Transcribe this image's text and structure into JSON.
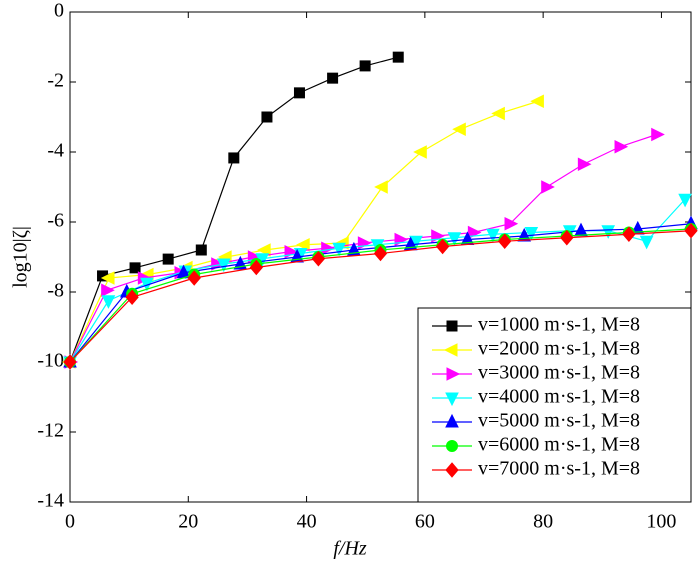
{
  "chart_data": {
    "type": "line",
    "x_label": "f/Hz",
    "y_label": "log10|ζ|",
    "xlim": [
      0,
      105
    ],
    "ylim": [
      -14,
      0
    ],
    "xticks": [
      0,
      20,
      40,
      60,
      80,
      100
    ],
    "yticks": [
      0,
      -2,
      -4,
      -6,
      -8,
      -10,
      -12,
      -14
    ],
    "legend": "lower right",
    "series": [
      {
        "name": "v=1000 m·s-1, M=8",
        "color": "#000000",
        "marker": "square",
        "x": [
          0,
          5.5,
          11,
          16.6,
          22.2,
          27.7,
          33.3,
          38.8,
          44.4,
          49.9,
          55.5
        ],
        "values": [
          -10,
          -7.54,
          -7.31,
          -7.06,
          -6.8,
          -4.17,
          -3.0,
          -2.31,
          -1.89,
          -1.54,
          -1.29
        ]
      },
      {
        "name": "v=2000 m·s-1, M=8",
        "color": "#ffff00",
        "marker": "triangle-left",
        "x": [
          0,
          6.6,
          13.2,
          19.8,
          26.4,
          33,
          39.6,
          46.2,
          52.8,
          59.4,
          66,
          72.6,
          79.2
        ],
        "values": [
          -10,
          -7.6,
          -7.5,
          -7.3,
          -7.0,
          -6.8,
          -6.65,
          -6.6,
          -5.0,
          -4.0,
          -3.35,
          -2.9,
          -2.55
        ]
      },
      {
        "name": "v=3000 m·s-1, M=8",
        "color": "#ff00ff",
        "marker": "triangle-right",
        "x": [
          0,
          6.2,
          12.4,
          18.6,
          24.8,
          31,
          37.2,
          43.4,
          49.6,
          55.8,
          62,
          68.2,
          74.4,
          80.6,
          86.8,
          93,
          99.2
        ],
        "values": [
          -10,
          -7.95,
          -7.6,
          -7.45,
          -7.2,
          -7.0,
          -6.85,
          -6.75,
          -6.6,
          -6.5,
          -6.4,
          -6.3,
          -6.05,
          -5.0,
          -4.35,
          -3.85,
          -3.5
        ]
      },
      {
        "name": "v=4000 m·s-1, M=8",
        "color": "#00ffff",
        "marker": "triangle-down",
        "x": [
          0,
          6.5,
          13,
          19.5,
          26,
          32.5,
          39,
          45.5,
          52,
          58.5,
          65,
          71.5,
          78,
          84.5,
          91,
          97.5,
          104
        ],
        "values": [
          -10,
          -8.25,
          -7.75,
          -7.4,
          -7.2,
          -7.05,
          -6.9,
          -6.75,
          -6.65,
          -6.55,
          -6.45,
          -6.35,
          -6.3,
          -6.25,
          -6.25,
          -6.55,
          -5.35
        ]
      },
      {
        "name": "v=5000 m·s-1, M=8",
        "color": "#0000ff",
        "marker": "triangle-up",
        "x": [
          0,
          9.6,
          19.2,
          28.8,
          38.4,
          48,
          57.6,
          67.2,
          76.8,
          86.4,
          96,
          105
        ],
        "values": [
          -10,
          -8.0,
          -7.45,
          -7.2,
          -7.0,
          -6.8,
          -6.65,
          -6.5,
          -6.4,
          -6.25,
          -6.2,
          -6.05
        ]
      },
      {
        "name": "v=6000 m·s-1, M=8",
        "color": "#00ff00",
        "marker": "circle",
        "x": [
          0,
          10.5,
          21,
          31.5,
          42,
          52.5,
          63,
          73.5,
          84,
          94.5,
          105
        ],
        "values": [
          -10,
          -8.05,
          -7.5,
          -7.2,
          -7.0,
          -6.8,
          -6.65,
          -6.5,
          -6.4,
          -6.3,
          -6.2
        ]
      },
      {
        "name": "v=7000 m·s-1, M=8",
        "color": "#ff0000",
        "marker": "diamond",
        "x": [
          0,
          10.5,
          21,
          31.5,
          42,
          52.5,
          63,
          73.5,
          84,
          94.5,
          105
        ],
        "values": [
          -10,
          -8.15,
          -7.6,
          -7.3,
          -7.05,
          -6.9,
          -6.7,
          -6.55,
          -6.45,
          -6.35,
          -6.25
        ]
      }
    ]
  }
}
